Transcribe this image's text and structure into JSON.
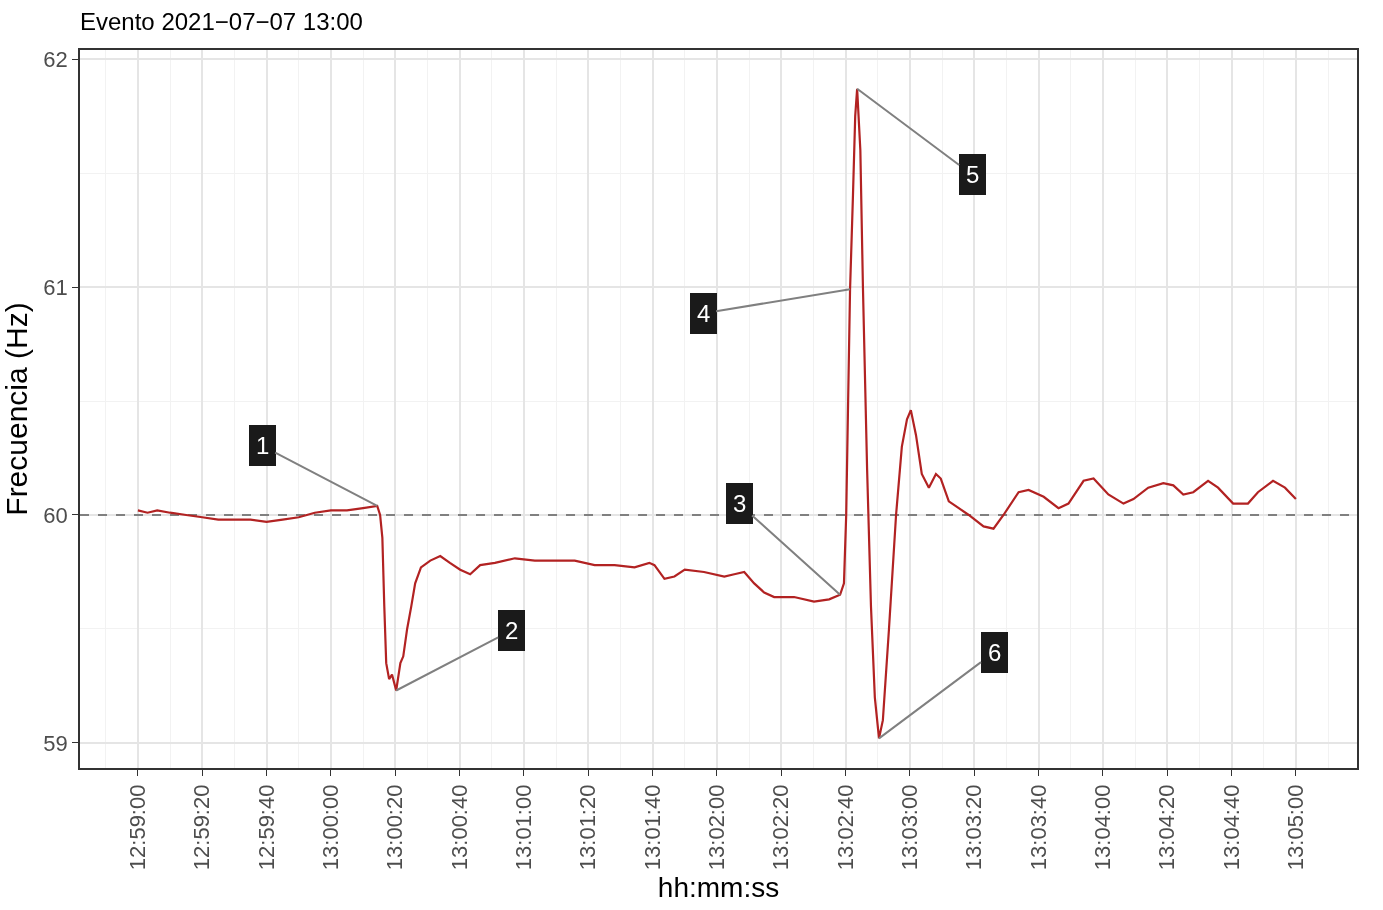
{
  "chart_data": {
    "type": "line",
    "title": "Evento 2021−07−07 13:00",
    "xlabel": "hh:mm:ss",
    "ylabel": "Frecuencia (Hz)",
    "x": [
      "2021-07-07T12:59:00",
      "2021-07-07T12:59:03",
      "2021-07-07T12:59:06",
      "2021-07-07T12:59:10",
      "2021-07-07T12:59:15",
      "2021-07-07T12:59:20",
      "2021-07-07T12:59:25",
      "2021-07-07T12:59:30",
      "2021-07-07T12:59:35",
      "2021-07-07T12:59:40",
      "2021-07-07T12:59:45",
      "2021-07-07T12:59:50",
      "2021-07-07T12:59:55",
      "2021-07-07T13:00:00",
      "2021-07-07T13:00:05",
      "2021-07-07T13:00:10",
      "2021-07-07T13:00:14.4",
      "2021-07-07T13:00:15.3",
      "2021-07-07T13:00:16",
      "2021-07-07T13:00:16.6",
      "2021-07-07T13:00:17.2",
      "2021-07-07T13:00:18.1",
      "2021-07-07T13:00:19",
      "2021-07-07T13:00:20.3",
      "2021-07-07T13:00:21.6",
      "2021-07-07T13:00:22.5",
      "2021-07-07T13:00:23.7",
      "2021-07-07T13:00:25",
      "2021-07-07T13:00:26.2",
      "2021-07-07T13:00:28",
      "2021-07-07T13:00:30.9",
      "2021-07-07T13:00:34",
      "2021-07-07T13:00:37",
      "2021-07-07T13:00:40.2",
      "2021-07-07T13:00:43.3",
      "2021-07-07T13:00:46.4",
      "2021-07-07T13:00:51",
      "2021-07-07T13:00:57.2",
      "2021-07-07T13:01:03.4",
      "2021-07-07T13:01:09.6",
      "2021-07-07T13:01:15.8",
      "2021-07-07T13:01:22",
      "2021-07-07T13:01:28.2",
      "2021-07-07T13:01:34.4",
      "2021-07-07T13:01:39",
      "2021-07-07T13:01:40.6",
      "2021-07-07T13:01:43.7",
      "2021-07-07T13:01:46.8",
      "2021-07-07T13:01:50",
      "2021-07-07T13:01:56",
      "2021-07-07T13:02:02.3",
      "2021-07-07T13:02:05.4",
      "2021-07-07T13:02:08.5",
      "2021-07-07T13:02:11.6",
      "2021-07-07T13:02:14.7",
      "2021-07-07T13:02:17.8",
      "2021-07-07T13:02:24",
      "2021-07-07T13:02:30.2",
      "2021-07-07T13:02:34.9",
      "2021-07-07T13:02:38.3",
      "2021-07-07T13:02:39.5",
      "2021-07-07T13:02:40.2",
      "2021-07-07T13:02:40.8",
      "2021-07-07T13:02:41.4",
      "2021-07-07T13:02:42.3",
      "2021-07-07T13:02:43",
      "2021-07-07T13:02:43.6",
      "2021-07-07T13:02:44.6",
      "2021-07-07T13:02:45.4",
      "2021-07-07T13:02:46.7",
      "2021-07-07T13:02:47.9",
      "2021-07-07T13:02:49.1",
      "2021-07-07T13:02:50.4",
      "2021-07-07T13:02:51.6",
      "2021-07-07T13:02:53.5",
      "2021-07-07T13:02:55.7",
      "2021-07-07T13:02:57.5",
      "2021-07-07T13:02:59.1",
      "2021-07-07T13:03:00.3",
      "2021-07-07T13:03:01.9",
      "2021-07-07T13:03:03.7",
      "2021-07-07T13:03:05.9",
      "2021-07-07T13:03:08.1",
      "2021-07-07T13:03:09.6",
      "2021-07-07T13:03:12.1",
      "2021-07-07T13:03:15.2",
      "2021-07-07T13:03:18.3",
      "2021-07-07T13:03:22.9",
      "2021-07-07T13:03:26",
      "2021-07-07T13:03:29.1",
      "2021-07-07T13:03:33.8",
      "2021-07-07T13:03:36.9",
      "2021-07-07T13:03:41.6",
      "2021-07-07T13:03:46.2",
      "2021-07-07T13:03:49.3",
      "2021-07-07T13:03:54",
      "2021-07-07T13:03:57.1",
      "2021-07-07T13:04:01.7",
      "2021-07-07T13:04:06.4",
      "2021-07-07T13:04:09.5",
      "2021-07-07T13:04:14.1",
      "2021-07-07T13:04:18.8",
      "2021-07-07T13:04:21.9",
      "2021-07-07T13:04:25",
      "2021-07-07T13:04:28.1",
      "2021-07-07T13:04:32.7",
      "2021-07-07T13:04:35.8",
      "2021-07-07T13:04:40.5",
      "2021-07-07T13:04:45.1",
      "2021-07-07T13:04:48.2",
      "2021-07-07T13:04:52.9",
      "2021-07-07T13:04:56.6",
      "2021-07-07T13:05:00"
    ],
    "series": [
      {
        "color": "#b22222",
        "values": [
          60.02,
          60.01,
          60.02,
          60.01,
          60.0,
          59.99,
          59.98,
          59.98,
          59.98,
          59.97,
          59.98,
          59.99,
          60.01,
          60.02,
          60.02,
          60.03,
          60.04,
          60.0,
          59.9,
          59.6,
          59.35,
          59.28,
          59.3,
          59.23,
          59.35,
          59.38,
          59.5,
          59.6,
          59.7,
          59.77,
          59.8,
          59.82,
          59.79,
          59.76,
          59.74,
          59.78,
          59.79,
          59.81,
          59.8,
          59.8,
          59.8,
          59.78,
          59.78,
          59.77,
          59.79,
          59.78,
          59.72,
          59.73,
          59.76,
          59.75,
          59.73,
          59.74,
          59.75,
          59.7,
          59.66,
          59.64,
          59.64,
          59.62,
          59.63,
          59.65,
          59.7,
          60.0,
          60.5,
          60.99,
          61.4,
          61.75,
          61.87,
          61.6,
          61.0,
          60.2,
          59.6,
          59.2,
          59.02,
          59.1,
          59.5,
          60.0,
          60.3,
          60.42,
          60.46,
          60.35,
          60.18,
          60.12,
          60.18,
          60.16,
          60.06,
          60.03,
          60.0,
          59.95,
          59.94,
          60.0,
          60.1,
          60.11,
          60.08,
          60.03,
          60.05,
          60.15,
          60.16,
          60.09,
          60.05,
          60.07,
          60.12,
          60.14,
          60.13,
          60.09,
          60.1,
          60.15,
          60.12,
          60.05,
          60.05,
          60.1,
          60.15,
          60.12,
          60.07
        ]
      }
    ],
    "xlim": [
      "2021-07-07T12:58:42",
      "2021-07-07T13:05:19"
    ],
    "xticks": [
      {
        "value": "2021-07-07T12:59:00",
        "label": "12:59:00"
      },
      {
        "value": "2021-07-07T12:59:20",
        "label": "12:59:20"
      },
      {
        "value": "2021-07-07T12:59:40",
        "label": "12:59:40"
      },
      {
        "value": "2021-07-07T13:00:00",
        "label": "13:00:00"
      },
      {
        "value": "2021-07-07T13:00:20",
        "label": "13:00:20"
      },
      {
        "value": "2021-07-07T13:00:40",
        "label": "13:00:40"
      },
      {
        "value": "2021-07-07T13:01:00",
        "label": "13:01:00"
      },
      {
        "value": "2021-07-07T13:01:20",
        "label": "13:01:20"
      },
      {
        "value": "2021-07-07T13:01:40",
        "label": "13:01:40"
      },
      {
        "value": "2021-07-07T13:02:00",
        "label": "13:02:00"
      },
      {
        "value": "2021-07-07T13:02:20",
        "label": "13:02:20"
      },
      {
        "value": "2021-07-07T13:02:40",
        "label": "13:02:40"
      },
      {
        "value": "2021-07-07T13:03:00",
        "label": "13:03:00"
      },
      {
        "value": "2021-07-07T13:03:20",
        "label": "13:03:20"
      },
      {
        "value": "2021-07-07T13:03:40",
        "label": "13:03:40"
      },
      {
        "value": "2021-07-07T13:04:00",
        "label": "13:04:00"
      },
      {
        "value": "2021-07-07T13:04:20",
        "label": "13:04:20"
      },
      {
        "value": "2021-07-07T13:04:40",
        "label": "13:04:40"
      },
      {
        "value": "2021-07-07T13:05:00",
        "label": "13:05:00"
      }
    ],
    "ylim": [
      58.89,
      62.04
    ],
    "yticks": [
      59,
      60,
      61,
      62
    ],
    "grid": true,
    "marker": "none",
    "line_style": "solid",
    "ref_lines": [
      {
        "axis": "y",
        "value": 60,
        "color": "#808080",
        "line_style": "dashed"
      }
    ],
    "annotations": [
      {
        "text": "1",
        "x": "2021-07-07T13:00:14.4",
        "y": 60.04
      },
      {
        "text": "2",
        "x": "2021-07-07T13:00:20.3",
        "y": 59.23
      },
      {
        "text": "3",
        "x": "2021-07-07T13:02:38.3",
        "y": 59.65
      },
      {
        "text": "4",
        "x": "2021-07-07T13:02:41.4",
        "y": 60.99
      },
      {
        "text": "5",
        "x": "2021-07-07T13:02:43.6",
        "y": 61.87
      },
      {
        "text": "6",
        "x": "2021-07-07T13:02:50.4",
        "y": 59.02
      }
    ]
  }
}
